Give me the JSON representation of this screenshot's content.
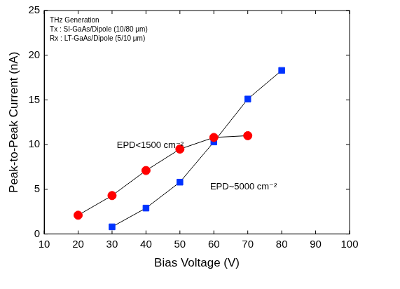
{
  "chart_data": {
    "type": "line",
    "annotations": [
      "THz Generation",
      "Tx : SI-GaAs/Dipole (10/80 μm)",
      "Rx : LT-GaAs/Dipole (5/10 μm)"
    ],
    "x_label": "Bias Voltage (V)",
    "y_label": "Peak-to-Peak Current (nA)",
    "series": [
      {
        "name": "EPD<1500 cm⁻²",
        "color": "#ff0000",
        "marker": "circle",
        "x": [
          20,
          30,
          40,
          50,
          60,
          70
        ],
        "values": [
          2.1,
          4.3,
          7.1,
          9.5,
          10.8,
          11.0
        ]
      },
      {
        "name": "EPD~5000 cm⁻²",
        "color": "#0033ff",
        "marker": "square",
        "x": [
          30,
          40,
          50,
          60,
          70,
          80
        ],
        "values": [
          0.8,
          2.9,
          5.8,
          10.3,
          15.1,
          18.3
        ]
      }
    ],
    "xlim": [
      10,
      100
    ],
    "xticks": [
      10,
      20,
      30,
      40,
      50,
      60,
      70,
      80,
      90,
      100
    ],
    "ylim": [
      0,
      25
    ],
    "yticks": [
      0,
      5,
      10,
      15,
      20,
      25
    ],
    "grid": false
  }
}
